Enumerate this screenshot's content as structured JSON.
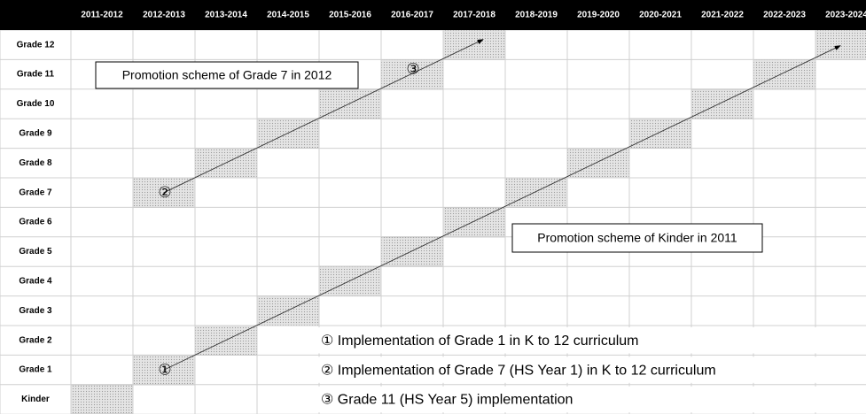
{
  "header": {
    "columns": [
      "2011-2012",
      "2012-2013",
      "2013-2014",
      "2014-2015",
      "2015-2016",
      "2016-2017",
      "2017-2018",
      "2018-2019",
      "2019-2020",
      "2020-2021",
      "2021-2022",
      "2022-2023",
      "2023-2024"
    ]
  },
  "rows": [
    "Grade 12",
    "Grade 11",
    "Grade 10",
    "Grade 9",
    "Grade 8",
    "Grade 7",
    "Grade 6",
    "Grade 5",
    "Grade 4",
    "Grade 3",
    "Grade 2",
    "Grade 1",
    "Kinder"
  ],
  "callouts": [
    "Promotion scheme of Grade 7 in 2012",
    "Promotion scheme of Kinder in 2011"
  ],
  "markers": [
    "①",
    "②",
    "③"
  ],
  "notes": [
    "① Implementation of Grade 1 in K to 12 curriculum",
    "② Implementation of Grade 7 (HS Year 1) in K to 12 curriculum",
    "③ Grade 11 (HS Year 5) implementation"
  ]
}
